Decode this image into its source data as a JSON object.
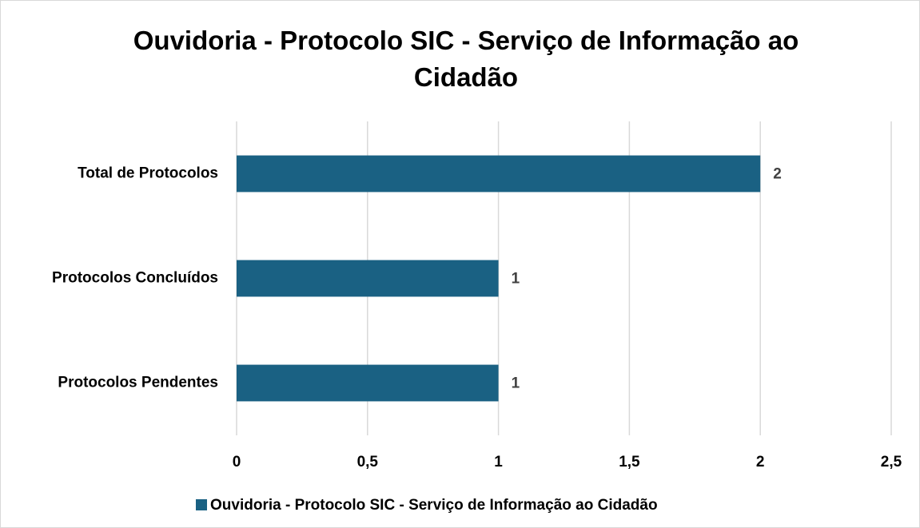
{
  "chart_data": {
    "type": "hbar",
    "title": "Ouvidoria - Protocolo SIC - Serviço de Informação ao Cidadão",
    "categories": [
      "Total de Protocolos",
      "Protocolos Concluídos",
      "Protocolos Pendentes"
    ],
    "series": [
      {
        "name": "Ouvidoria - Protocolo SIC - Serviço de Informação ao Cidadão",
        "color": "#1a6183",
        "values": [
          2,
          1,
          1
        ]
      }
    ],
    "xlim": [
      0,
      2.5
    ],
    "xticks": [
      0,
      {
        "value": 0.5,
        "label": "0,5"
      },
      1,
      {
        "value": 1.5,
        "label": "1,5"
      },
      2,
      {
        "value": 2.5,
        "label": "2,5"
      }
    ],
    "grid": true,
    "legend": "bottom"
  }
}
